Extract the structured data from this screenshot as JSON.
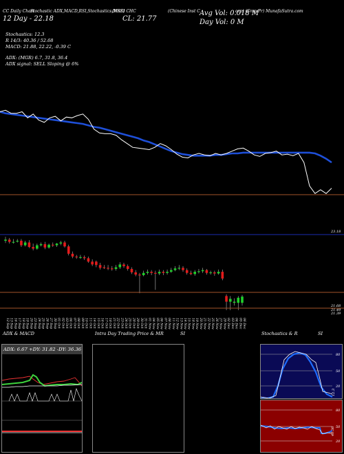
{
  "header": {
    "chart_type": "CC Daily Chart",
    "indicators": "Stochastic ADX,MACD,RSI,Stochastics,MRSI",
    "stock_symbol": "(NSE) CHC",
    "company": "(Chinese Inst C",
    "source": "orp) (Cmp Pr) MunafaSutra.com",
    "date_label": "12  Day - 22.18",
    "close_label": "CL: 21.77",
    "avg_vol": "Avg Vol: 0.018  M",
    "day_vol": "Day Vol: 0   M"
  },
  "stats": {
    "stochastics": "Stochastics: 12.3",
    "rsi": "R       14/3: 40.36   / 52.68",
    "macd": "MACD: 21.88,  22.22,  -0.39  C",
    "adx": "ADX:                 (MGR) 6.7,  31.8,  36.4",
    "adx_signal": "ADX  signal: SELL  Sloping @ 6%"
  },
  "price_labels": {
    "top": "23.18",
    "low1": "21.68",
    "low2": "21.49",
    "low3": "21.39"
  },
  "x_dates": [
    "12 Sep",
    "13 Sep",
    "16 Sep",
    "17 Sep",
    "18 Sep",
    "19 Sep",
    "20 Sep",
    "23 Sep",
    "24 Sep",
    "25 Sep",
    "26 Sep",
    "27 Sep",
    "30 Sep",
    "01 Oct",
    "02 Oct",
    "03 Oct",
    "04 Oct",
    "07 Oct",
    "08 Oct",
    "09 Oct",
    "10 Oct",
    "11 Oct",
    "14 Oct",
    "15 Oct",
    "16 Oct",
    "17 Oct",
    "18 Oct",
    "21 Oct",
    "22 Oct",
    "23 Oct",
    "24 Oct",
    "25 Oct",
    "28 Oct",
    "29 Oct",
    "30 Oct",
    "31 Oct",
    "01 Nov",
    "04 Nov",
    "05 Nov",
    "06 Nov",
    "07 Nov",
    "08 Nov",
    "11 Nov",
    "12 Nov",
    "13 Nov",
    "14 Nov",
    "15 Nov",
    "18 Nov",
    "19 Nov",
    "20 Nov",
    "21 Nov",
    "22 Nov",
    "25 Nov",
    "26 Nov",
    "27 Nov",
    "29 Nov",
    "02 Dec",
    "03 Dec",
    "04 Dec",
    "05 Dec",
    "06 Dec"
  ],
  "panels": {
    "adx_title": "ADX  & MACD",
    "adx_values": "ADX: 6.67  +DY: 31.82  -DY: 36.36",
    "intra_title": "Intra  Day Trading Price  & MR",
    "intra_si": "SI",
    "stoch_title": "Stochastics & R",
    "stoch_si": "SI",
    "stoch_ticks": [
      "80",
      "50",
      "20"
    ],
    "stoch_last": "12.3",
    "rsi_ticks": [
      "80",
      "50",
      "20"
    ],
    "rsi_last": "40.36"
  },
  "colors": {
    "background": "#000000",
    "ma_line": "#1e4fd8",
    "up_candle": "#1fd12a",
    "down_candle": "#e31b1b",
    "rsi_panel": "#8b0000",
    "stoch_panel": "#0a0a55"
  },
  "chart_data": [
    {
      "type": "line",
      "title": "",
      "series": [
        {
          "values": [
            22.95,
            22.93,
            22.92,
            22.91,
            22.9,
            22.89,
            22.88,
            22.87,
            22.86,
            22.85,
            22.84,
            22.83,
            22.82,
            22.81,
            22.8,
            22.79,
            22.77,
            22.75,
            22.74,
            22.72,
            22.7,
            22.68,
            22.66,
            22.64,
            22.62,
            22.6,
            22.57,
            22.55,
            22.52,
            22.49,
            22.46,
            22.43,
            22.41,
            22.39,
            22.38,
            22.37,
            22.37,
            22.37,
            22.37,
            22.38,
            22.38,
            22.39,
            22.4,
            22.4,
            22.41,
            22.41,
            22.41,
            22.41,
            22.41,
            22.41,
            22.41,
            22.41,
            22.41,
            22.41,
            22.41,
            22.41,
            22.41,
            22.4,
            22.37,
            22.33,
            22.28
          ]
        },
        {
          "values": [
            22.95,
            22.97,
            22.93,
            22.93,
            22.95,
            22.87,
            22.92,
            22.84,
            22.81,
            22.87,
            22.89,
            22.83,
            22.88,
            22.87,
            22.9,
            22.92,
            22.85,
            22.72,
            22.67,
            22.66,
            22.66,
            22.64,
            22.58,
            22.53,
            22.48,
            22.47,
            22.46,
            22.45,
            22.48,
            22.53,
            22.5,
            22.45,
            22.39,
            22.35,
            22.34,
            22.38,
            22.4,
            22.38,
            22.37,
            22.4,
            22.38,
            22.4,
            22.43,
            22.46,
            22.47,
            22.43,
            22.38,
            22.36,
            22.4,
            22.41,
            22.43,
            22.38,
            22.39,
            22.37,
            22.4,
            22.28,
            21.97,
            21.87,
            21.92,
            21.87,
            21.94
          ]
        }
      ]
    },
    {
      "type": "bar",
      "title": "",
      "x": [
        "12 Sep",
        "13 Sep",
        "16 Sep",
        "17 Sep",
        "18 Sep",
        "19 Sep",
        "20 Sep",
        "23 Sep",
        "24 Sep",
        "25 Sep",
        "26 Sep",
        "27 Sep",
        "30 Sep",
        "01 Oct",
        "02 Oct",
        "03 Oct",
        "04 Oct",
        "07 Oct",
        "08 Oct",
        "09 Oct",
        "10 Oct",
        "11 Oct",
        "14 Oct",
        "15 Oct",
        "16 Oct",
        "17 Oct",
        "18 Oct",
        "21 Oct",
        "22 Oct",
        "23 Oct",
        "24 Oct",
        "25 Oct",
        "28 Oct",
        "29 Oct",
        "30 Oct",
        "31 Oct",
        "01 Nov",
        "04 Nov",
        "05 Nov",
        "06 Nov",
        "07 Nov",
        "08 Nov",
        "11 Nov",
        "12 Nov",
        "13 Nov",
        "14 Nov",
        "15 Nov",
        "18 Nov",
        "19 Nov",
        "20 Nov",
        "21 Nov",
        "22 Nov",
        "25 Nov",
        "26 Nov",
        "27 Nov",
        "29 Nov",
        "02 Dec",
        "03 Dec",
        "04 Dec",
        "05 Dec",
        "06 Dec"
      ],
      "open": [
        22.95,
        22.97,
        22.93,
        22.95,
        22.95,
        22.87,
        22.92,
        22.84,
        22.81,
        22.87,
        22.89,
        22.83,
        22.88,
        22.87,
        22.9,
        22.92,
        22.85,
        22.72,
        22.67,
        22.66,
        22.66,
        22.64,
        22.58,
        22.58,
        22.52,
        22.48,
        22.47,
        22.46,
        22.45,
        22.48,
        22.53,
        22.5,
        22.45,
        22.39,
        22.35,
        22.34,
        22.38,
        22.4,
        22.38,
        22.37,
        22.4,
        22.38,
        22.4,
        22.43,
        22.46,
        22.47,
        22.43,
        22.38,
        22.36,
        22.4,
        22.41,
        22.43,
        22.38,
        22.39,
        22.37,
        22.4,
        21.97,
        21.87,
        21.85,
        21.85,
        21.85
      ],
      "close": [
        22.97,
        22.93,
        22.93,
        22.95,
        22.87,
        22.92,
        22.84,
        22.81,
        22.87,
        22.89,
        22.83,
        22.88,
        22.87,
        22.9,
        22.92,
        22.85,
        22.72,
        22.67,
        22.66,
        22.66,
        22.64,
        22.58,
        22.53,
        22.52,
        22.47,
        22.47,
        22.46,
        22.45,
        22.48,
        22.53,
        22.5,
        22.45,
        22.39,
        22.35,
        22.34,
        22.38,
        22.4,
        22.38,
        22.37,
        22.4,
        22.38,
        22.4,
        22.43,
        22.46,
        22.47,
        22.43,
        22.38,
        22.36,
        22.4,
        22.41,
        22.43,
        22.38,
        22.39,
        22.37,
        22.4,
        22.28,
        21.87,
        21.92,
        21.87,
        21.94,
        21.96
      ],
      "high": [
        23.02,
        23.0,
        22.98,
        22.98,
        22.98,
        22.95,
        22.96,
        22.9,
        22.9,
        22.92,
        22.93,
        22.9,
        22.92,
        22.91,
        22.95,
        22.95,
        22.88,
        22.76,
        22.7,
        22.7,
        22.69,
        22.67,
        22.62,
        22.6,
        22.56,
        22.52,
        22.52,
        22.5,
        22.52,
        22.57,
        22.56,
        22.53,
        22.48,
        22.43,
        22.38,
        22.42,
        22.44,
        22.43,
        22.42,
        22.44,
        22.43,
        22.44,
        22.47,
        22.5,
        22.52,
        22.5,
        22.46,
        22.42,
        22.43,
        22.45,
        22.47,
        22.45,
        22.42,
        22.42,
        22.44,
        22.44,
        22.0,
        21.97,
        21.93,
        21.97,
        21.99
      ],
      "low": [
        22.91,
        22.9,
        22.9,
        22.92,
        22.84,
        22.85,
        22.82,
        22.78,
        22.79,
        22.85,
        22.8,
        22.81,
        22.84,
        22.84,
        22.87,
        22.83,
        22.69,
        22.64,
        22.63,
        22.63,
        22.61,
        22.56,
        22.5,
        22.48,
        22.44,
        22.45,
        22.43,
        22.42,
        22.42,
        22.45,
        22.47,
        22.42,
        22.36,
        22.32,
        22.02,
        22.32,
        22.35,
        22.34,
        22.08,
        22.34,
        22.34,
        22.35,
        22.38,
        22.41,
        22.43,
        22.4,
        22.35,
        22.34,
        22.33,
        22.37,
        22.38,
        22.35,
        22.35,
        22.33,
        22.35,
        22.25,
        21.72,
        21.72,
        21.8,
        21.72,
        21.8
      ]
    }
  ]
}
